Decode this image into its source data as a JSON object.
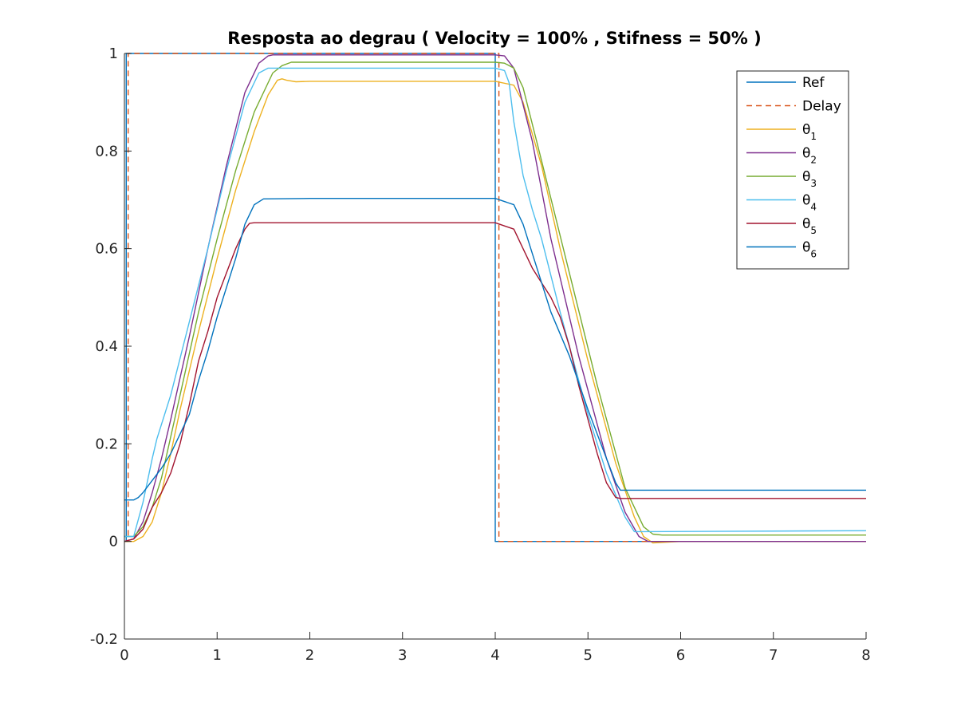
{
  "chart_data": {
    "type": "line",
    "title": "Resposta ao degrau ( Velocity = 100% , Stifness = 50% )",
    "xlabel": "",
    "ylabel": "",
    "xlim": [
      0,
      8
    ],
    "ylim": [
      -0.2,
      1
    ],
    "x_ticks": [
      0,
      1,
      2,
      3,
      4,
      5,
      6,
      7,
      8
    ],
    "x_tick_labels": [
      "0",
      "1",
      "2",
      "3",
      "4",
      "5",
      "6",
      "7",
      "8"
    ],
    "y_ticks": [
      -0.2,
      0,
      0.2,
      0.4,
      0.6,
      0.8,
      1
    ],
    "y_tick_labels": [
      "-0.2",
      "0",
      "0.2",
      "0.4",
      "0.6",
      "0.8",
      "1"
    ],
    "grid": false,
    "legend_position": "top-right",
    "series": [
      {
        "name": "Ref",
        "label": "Ref",
        "sub": "",
        "color": "#0072bd",
        "dash": false,
        "x": [
          0,
          0.02,
          0.02,
          4.0,
          4.0,
          8
        ],
        "y": [
          0,
          0,
          1,
          1,
          0,
          0
        ]
      },
      {
        "name": "Delay",
        "label": "Delay",
        "sub": "",
        "color": "#d95319",
        "dash": true,
        "x": [
          0,
          0.04,
          0.04,
          4.04,
          4.04,
          8
        ],
        "y": [
          0,
          0,
          1,
          1,
          0,
          0
        ]
      },
      {
        "name": "θ1",
        "label": "θ",
        "sub": "1",
        "color": "#edb120",
        "dash": false,
        "x": [
          0,
          0.1,
          0.15,
          0.2,
          0.3,
          0.4,
          0.5,
          0.6,
          0.8,
          1.0,
          1.2,
          1.4,
          1.55,
          1.65,
          1.7,
          1.75,
          1.85,
          2.0,
          4.0,
          4.2,
          4.3,
          4.5,
          4.7,
          5.0,
          5.3,
          5.5,
          5.6,
          5.7,
          5.8,
          6.0,
          8.0
        ],
        "y": [
          0,
          0,
          0.005,
          0.01,
          0.04,
          0.1,
          0.18,
          0.27,
          0.43,
          0.58,
          0.72,
          0.84,
          0.915,
          0.945,
          0.948,
          0.945,
          0.942,
          0.943,
          0.943,
          0.935,
          0.9,
          0.77,
          0.6,
          0.37,
          0.16,
          0.05,
          0.01,
          -0.003,
          -0.002,
          0,
          0
        ]
      },
      {
        "name": "θ2",
        "label": "θ",
        "sub": "2",
        "color": "#7e2f8e",
        "dash": false,
        "x": [
          0,
          0.1,
          0.2,
          0.3,
          0.4,
          0.5,
          0.7,
          0.9,
          1.1,
          1.3,
          1.45,
          1.55,
          1.6,
          1.7,
          2.0,
          4.0,
          4.1,
          4.2,
          4.4,
          4.6,
          4.9,
          5.2,
          5.4,
          5.55,
          5.65,
          5.7,
          8.0
        ],
        "y": [
          0,
          0.005,
          0.04,
          0.1,
          0.17,
          0.25,
          0.42,
          0.6,
          0.77,
          0.92,
          0.98,
          0.995,
          0.997,
          0.997,
          0.997,
          0.997,
          0.995,
          0.97,
          0.82,
          0.62,
          0.38,
          0.17,
          0.06,
          0.01,
          0,
          0,
          0
        ]
      },
      {
        "name": "θ3",
        "label": "θ",
        "sub": "3",
        "color": "#77ac30",
        "dash": false,
        "x": [
          0,
          0.1,
          0.2,
          0.3,
          0.4,
          0.6,
          0.8,
          1.0,
          1.2,
          1.4,
          1.6,
          1.7,
          1.8,
          2.0,
          4.0,
          4.1,
          4.2,
          4.3,
          4.5,
          4.8,
          5.1,
          5.4,
          5.6,
          5.7,
          5.8,
          8.0
        ],
        "y": [
          0.01,
          0.01,
          0.03,
          0.07,
          0.13,
          0.3,
          0.47,
          0.62,
          0.76,
          0.88,
          0.96,
          0.975,
          0.982,
          0.982,
          0.982,
          0.98,
          0.97,
          0.93,
          0.78,
          0.55,
          0.32,
          0.11,
          0.03,
          0.015,
          0.013,
          0.013
        ]
      },
      {
        "name": "θ4",
        "label": "θ",
        "sub": "4",
        "color": "#4dbeee",
        "dash": false,
        "x": [
          0,
          0.1,
          0.2,
          0.3,
          0.35,
          0.5,
          0.7,
          0.9,
          1.1,
          1.3,
          1.45,
          1.55,
          1.6,
          1.7,
          2.0,
          4.0,
          4.1,
          4.15,
          4.2,
          4.3,
          4.4,
          4.5,
          4.7,
          5.0,
          5.2,
          5.4,
          5.5,
          5.6,
          8.0
        ],
        "y": [
          0.01,
          0.01,
          0.08,
          0.17,
          0.21,
          0.3,
          0.45,
          0.6,
          0.76,
          0.9,
          0.96,
          0.97,
          0.97,
          0.97,
          0.97,
          0.97,
          0.965,
          0.94,
          0.86,
          0.75,
          0.68,
          0.62,
          0.47,
          0.26,
          0.14,
          0.05,
          0.02,
          0.02,
          0.022
        ]
      },
      {
        "name": "θ5",
        "label": "θ",
        "sub": "5",
        "color": "#a2142f",
        "dash": false,
        "x": [
          0,
          0.1,
          0.2,
          0.3,
          0.4,
          0.5,
          0.6,
          0.7,
          0.8,
          0.9,
          1.0,
          1.1,
          1.2,
          1.3,
          1.35,
          1.4,
          2.0,
          4.0,
          4.2,
          4.3,
          4.4,
          4.5,
          4.6,
          4.7,
          4.8,
          4.9,
          5.0,
          5.1,
          5.2,
          5.3,
          5.35,
          8.0
        ],
        "y": [
          0,
          0.005,
          0.025,
          0.07,
          0.1,
          0.14,
          0.2,
          0.28,
          0.37,
          0.43,
          0.5,
          0.55,
          0.6,
          0.64,
          0.652,
          0.653,
          0.653,
          0.653,
          0.64,
          0.6,
          0.56,
          0.53,
          0.5,
          0.46,
          0.4,
          0.32,
          0.25,
          0.18,
          0.12,
          0.09,
          0.088,
          0.088
        ]
      },
      {
        "name": "θ6",
        "label": "θ",
        "sub": "6",
        "color": "#0072bd",
        "dash": false,
        "x": [
          0,
          0.1,
          0.15,
          0.2,
          0.3,
          0.4,
          0.5,
          0.6,
          0.7,
          0.8,
          0.9,
          1.0,
          1.1,
          1.2,
          1.3,
          1.4,
          1.5,
          2.0,
          4.0,
          4.2,
          4.3,
          4.4,
          4.6,
          4.8,
          5.0,
          5.2,
          5.3,
          5.35,
          5.4,
          8.0
        ],
        "y": [
          0.085,
          0.085,
          0.09,
          0.1,
          0.125,
          0.15,
          0.18,
          0.22,
          0.26,
          0.33,
          0.39,
          0.46,
          0.52,
          0.58,
          0.65,
          0.69,
          0.702,
          0.703,
          0.703,
          0.69,
          0.65,
          0.59,
          0.47,
          0.38,
          0.27,
          0.17,
          0.12,
          0.105,
          0.105,
          0.105
        ]
      }
    ]
  }
}
